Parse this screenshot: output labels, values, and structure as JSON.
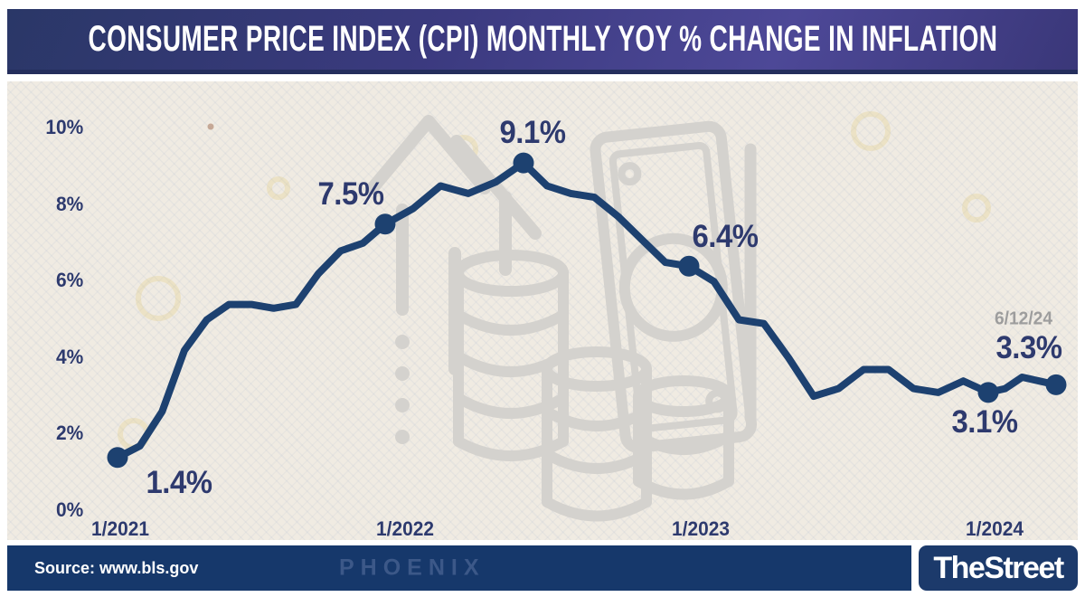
{
  "title": "CONSUMER PRICE INDEX (CPI) MONTHLY YOY % CHANGE IN INFLATION",
  "header": {
    "text_color": "#ffffff",
    "background_colors": [
      "#2a3767",
      "#3b3a7f",
      "#4d4897"
    ]
  },
  "source_bar": {
    "label": "Source: www.bls.gov",
    "background": "#16386b",
    "watermark_text": "PHOENIX"
  },
  "brand": {
    "name": "TheStreet",
    "background": "#1c3a6b",
    "text_color": "#ffffff"
  },
  "panel": {
    "background": "#f0ebe2",
    "watermark_color": "#d4d2ce"
  },
  "chart_data": {
    "type": "line",
    "title": "CONSUMER PRICE INDEX (CPI) MONTHLY YOY % CHANGE IN INFLATION",
    "xlabel": "",
    "ylabel": "",
    "ylim": [
      0,
      10
    ],
    "grid": false,
    "legend": false,
    "line_color": "#1d4170",
    "marker_color": "#1d4170",
    "annotation_color": "#2e3a6e",
    "note_color": "#9d9d9d",
    "axis_label_color": "#2d3a6e",
    "y_ticks": [
      {
        "label": "10%",
        "value": 10
      },
      {
        "label": "8%",
        "value": 8
      },
      {
        "label": "6%",
        "value": 6
      },
      {
        "label": "4%",
        "value": 4
      },
      {
        "label": "2%",
        "value": 2
      },
      {
        "label": "0%",
        "value": 0
      }
    ],
    "x_ticks": [
      "1/2021",
      "1/2022",
      "1/2023",
      "1/2024"
    ],
    "x": [
      "1/2021",
      "2/2021",
      "3/2021",
      "4/2021",
      "5/2021",
      "6/2021",
      "7/2021",
      "8/2021",
      "9/2021",
      "10/2021",
      "11/2021",
      "12/2021",
      "1/2022",
      "2/2022",
      "3/2022",
      "4/2022",
      "5/2022",
      "6/2022",
      "7/2022",
      "8/2022",
      "9/2022",
      "10/2022",
      "11/2022",
      "12/2022",
      "1/2023",
      "2/2023",
      "3/2023",
      "4/2023",
      "5/2023",
      "6/2023",
      "7/2023",
      "8/2023",
      "9/2023",
      "10/2023",
      "11/2023",
      "12/2023",
      "1/2024",
      "2/2024",
      "3/2024",
      "4/2024",
      "5/2024"
    ],
    "values": [
      1.4,
      1.7,
      2.6,
      4.2,
      5.0,
      5.4,
      5.4,
      5.3,
      5.4,
      6.2,
      6.8,
      7.0,
      7.5,
      7.9,
      8.5,
      8.3,
      8.6,
      9.1,
      8.5,
      8.3,
      8.2,
      7.7,
      7.1,
      6.5,
      6.4,
      6.0,
      5.0,
      4.9,
      4.0,
      3.0,
      3.2,
      3.7,
      3.7,
      3.2,
      3.1,
      3.4,
      3.1,
      3.2,
      3.5,
      3.4,
      3.3
    ],
    "annotations": [
      {
        "x": "1/2021",
        "value": 1.4,
        "label": "1.4%"
      },
      {
        "x": "1/2022",
        "value": 7.5,
        "label": "7.5%"
      },
      {
        "x": "6/2022",
        "value": 9.1,
        "label": "9.1%"
      },
      {
        "x": "1/2023",
        "value": 6.4,
        "label": "6.4%"
      },
      {
        "x": "1/2024",
        "value": 3.1,
        "label": "3.1%"
      },
      {
        "x": "5/2024",
        "value": 3.3,
        "label": "3.3%",
        "note": "6/12/24"
      }
    ]
  }
}
